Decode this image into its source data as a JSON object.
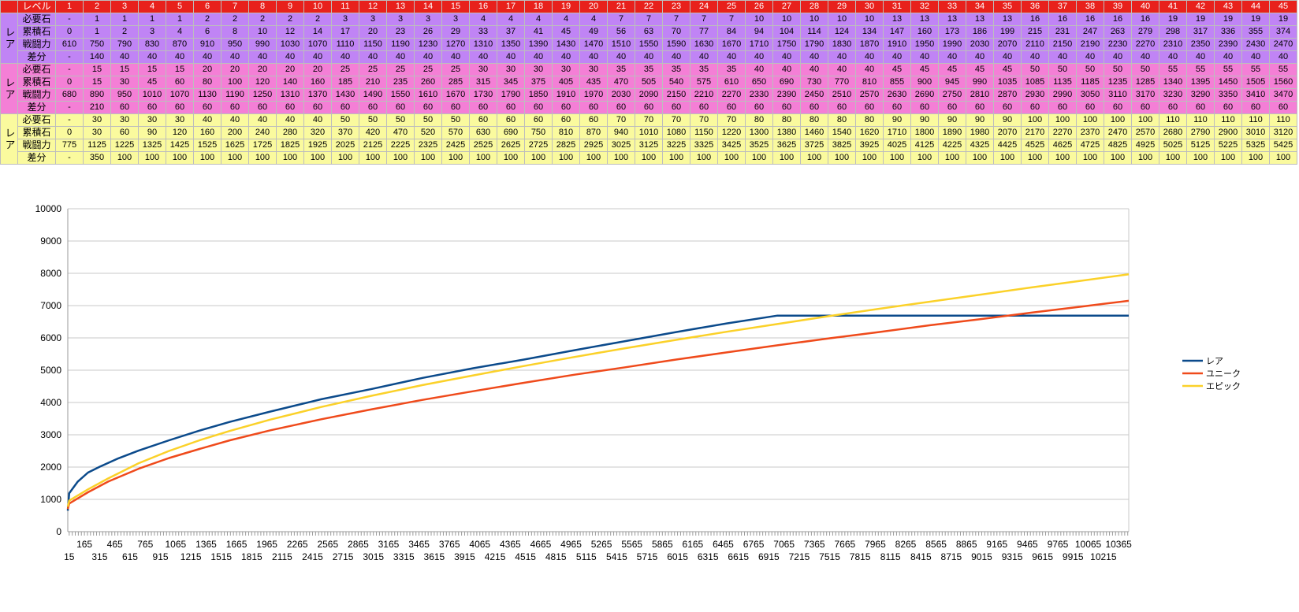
{
  "table": {
    "header_label": "レベル",
    "levels": [
      1,
      2,
      3,
      4,
      5,
      6,
      7,
      8,
      9,
      10,
      11,
      12,
      13,
      14,
      15,
      16,
      17,
      18,
      19,
      20,
      21,
      22,
      23,
      24,
      25,
      26,
      27,
      28,
      29,
      30,
      31,
      32,
      33,
      34,
      35,
      36,
      37,
      38,
      39,
      40,
      41,
      42,
      43,
      44,
      45
    ],
    "groups": [
      {
        "side_label": "レア",
        "color": "#c084f5",
        "rows": [
          {
            "label": "必要石",
            "values": [
              "-",
              "1",
              "1",
              "1",
              "1",
              "2",
              "2",
              "2",
              "2",
              "2",
              "3",
              "3",
              "3",
              "3",
              "3",
              "4",
              "4",
              "4",
              "4",
              "4",
              "7",
              "7",
              "7",
              "7",
              "7",
              "10",
              "10",
              "10",
              "10",
              "10",
              "13",
              "13",
              "13",
              "13",
              "13",
              "16",
              "16",
              "16",
              "16",
              "16",
              "19",
              "19",
              "19",
              "19",
              "19"
            ]
          },
          {
            "label": "累積石",
            "values": [
              "0",
              "1",
              "2",
              "3",
              "4",
              "6",
              "8",
              "10",
              "12",
              "14",
              "17",
              "20",
              "23",
              "26",
              "29",
              "33",
              "37",
              "41",
              "45",
              "49",
              "56",
              "63",
              "70",
              "77",
              "84",
              "94",
              "104",
              "114",
              "124",
              "134",
              "147",
              "160",
              "173",
              "186",
              "199",
              "215",
              "231",
              "247",
              "263",
              "279",
              "298",
              "317",
              "336",
              "355",
              "374"
            ]
          },
          {
            "label": "戦闘力",
            "values": [
              "610",
              "750",
              "790",
              "830",
              "870",
              "910",
              "950",
              "990",
              "1030",
              "1070",
              "1110",
              "1150",
              "1190",
              "1230",
              "1270",
              "1310",
              "1350",
              "1390",
              "1430",
              "1470",
              "1510",
              "1550",
              "1590",
              "1630",
              "1670",
              "1710",
              "1750",
              "1790",
              "1830",
              "1870",
              "1910",
              "1950",
              "1990",
              "2030",
              "2070",
              "2110",
              "2150",
              "2190",
              "2230",
              "2270",
              "2310",
              "2350",
              "2390",
              "2430",
              "2470"
            ]
          },
          {
            "label": "差分",
            "values": [
              "-",
              "140",
              "40",
              "40",
              "40",
              "40",
              "40",
              "40",
              "40",
              "40",
              "40",
              "40",
              "40",
              "40",
              "40",
              "40",
              "40",
              "40",
              "40",
              "40",
              "40",
              "40",
              "40",
              "40",
              "40",
              "40",
              "40",
              "40",
              "40",
              "40",
              "40",
              "40",
              "40",
              "40",
              "40",
              "40",
              "40",
              "40",
              "40",
              "40",
              "40",
              "40",
              "40",
              "40",
              "40"
            ]
          }
        ]
      },
      {
        "side_label": "レア",
        "color": "#f47fd6",
        "rows": [
          {
            "label": "必要石",
            "values": [
              "-",
              "15",
              "15",
              "15",
              "15",
              "20",
              "20",
              "20",
              "20",
              "20",
              "25",
              "25",
              "25",
              "25",
              "25",
              "30",
              "30",
              "30",
              "30",
              "30",
              "35",
              "35",
              "35",
              "35",
              "35",
              "40",
              "40",
              "40",
              "40",
              "40",
              "45",
              "45",
              "45",
              "45",
              "45",
              "50",
              "50",
              "50",
              "50",
              "50",
              "55",
              "55",
              "55",
              "55",
              "55"
            ]
          },
          {
            "label": "累積石",
            "values": [
              "0",
              "15",
              "30",
              "45",
              "60",
              "80",
              "100",
              "120",
              "140",
              "160",
              "185",
              "210",
              "235",
              "260",
              "285",
              "315",
              "345",
              "375",
              "405",
              "435",
              "470",
              "505",
              "540",
              "575",
              "610",
              "650",
              "690",
              "730",
              "770",
              "810",
              "855",
              "900",
              "945",
              "990",
              "1035",
              "1085",
              "1135",
              "1185",
              "1235",
              "1285",
              "1340",
              "1395",
              "1450",
              "1505",
              "1560"
            ]
          },
          {
            "label": "戦闘力",
            "values": [
              "680",
              "890",
              "950",
              "1010",
              "1070",
              "1130",
              "1190",
              "1250",
              "1310",
              "1370",
              "1430",
              "1490",
              "1550",
              "1610",
              "1670",
              "1730",
              "1790",
              "1850",
              "1910",
              "1970",
              "2030",
              "2090",
              "2150",
              "2210",
              "2270",
              "2330",
              "2390",
              "2450",
              "2510",
              "2570",
              "2630",
              "2690",
              "2750",
              "2810",
              "2870",
              "2930",
              "2990",
              "3050",
              "3110",
              "3170",
              "3230",
              "3290",
              "3350",
              "3410",
              "3470"
            ]
          },
          {
            "label": "差分",
            "values": [
              "-",
              "210",
              "60",
              "60",
              "60",
              "60",
              "60",
              "60",
              "60",
              "60",
              "60",
              "60",
              "60",
              "60",
              "60",
              "60",
              "60",
              "60",
              "60",
              "60",
              "60",
              "60",
              "60",
              "60",
              "60",
              "60",
              "60",
              "60",
              "60",
              "60",
              "60",
              "60",
              "60",
              "60",
              "60",
              "60",
              "60",
              "60",
              "60",
              "60",
              "60",
              "60",
              "60",
              "60",
              "60"
            ]
          }
        ]
      },
      {
        "side_label": "レア",
        "color": "#fafa9e",
        "rows": [
          {
            "label": "必要石",
            "values": [
              "-",
              "30",
              "30",
              "30",
              "30",
              "40",
              "40",
              "40",
              "40",
              "40",
              "50",
              "50",
              "50",
              "50",
              "50",
              "60",
              "60",
              "60",
              "60",
              "60",
              "70",
              "70",
              "70",
              "70",
              "70",
              "80",
              "80",
              "80",
              "80",
              "80",
              "90",
              "90",
              "90",
              "90",
              "90",
              "100",
              "100",
              "100",
              "100",
              "100",
              "110",
              "110",
              "110",
              "110",
              "110"
            ]
          },
          {
            "label": "累積石",
            "values": [
              "0",
              "30",
              "60",
              "90",
              "120",
              "160",
              "200",
              "240",
              "280",
              "320",
              "370",
              "420",
              "470",
              "520",
              "570",
              "630",
              "690",
              "750",
              "810",
              "870",
              "940",
              "1010",
              "1080",
              "1150",
              "1220",
              "1300",
              "1380",
              "1460",
              "1540",
              "1620",
              "1710",
              "1800",
              "1890",
              "1980",
              "2070",
              "2170",
              "2270",
              "2370",
              "2470",
              "2570",
              "2680",
              "2790",
              "2900",
              "3010",
              "3120"
            ]
          },
          {
            "label": "戦闘力",
            "values": [
              "775",
              "1125",
              "1225",
              "1325",
              "1425",
              "1525",
              "1625",
              "1725",
              "1825",
              "1925",
              "2025",
              "2125",
              "2225",
              "2325",
              "2425",
              "2525",
              "2625",
              "2725",
              "2825",
              "2925",
              "3025",
              "3125",
              "3225",
              "3325",
              "3425",
              "3525",
              "3625",
              "3725",
              "3825",
              "3925",
              "4025",
              "4125",
              "4225",
              "4325",
              "4425",
              "4525",
              "4625",
              "4725",
              "4825",
              "4925",
              "5025",
              "5125",
              "5225",
              "5325",
              "5425"
            ]
          },
          {
            "label": "差分",
            "values": [
              "-",
              "350",
              "100",
              "100",
              "100",
              "100",
              "100",
              "100",
              "100",
              "100",
              "100",
              "100",
              "100",
              "100",
              "100",
              "100",
              "100",
              "100",
              "100",
              "100",
              "100",
              "100",
              "100",
              "100",
              "100",
              "100",
              "100",
              "100",
              "100",
              "100",
              "100",
              "100",
              "100",
              "100",
              "100",
              "100",
              "100",
              "100",
              "100",
              "100",
              "100",
              "100",
              "100",
              "100",
              "100"
            ]
          }
        ]
      }
    ]
  },
  "chart_data": {
    "type": "line",
    "ylim": [
      0,
      10000
    ],
    "y_ticks": [
      0,
      1000,
      2000,
      3000,
      4000,
      5000,
      6000,
      7000,
      8000,
      9000,
      10000
    ],
    "xlim": [
      1,
      10465
    ],
    "x_labels_row1": [
      "165",
      "465",
      "765",
      "1065",
      "1365",
      "1665",
      "1965",
      "2265",
      "2565",
      "2865",
      "3165",
      "3465",
      "3765",
      "4065",
      "4365",
      "4665",
      "4965",
      "5265",
      "5565",
      "5865",
      "6165",
      "6465",
      "6765",
      "7065",
      "7365",
      "7665",
      "7965",
      "8265",
      "8565",
      "8865",
      "9165",
      "9465",
      "9765",
      "10065",
      "10365"
    ],
    "x_labels_row2": [
      "15",
      "315",
      "615",
      "915",
      "1215",
      "1515",
      "1815",
      "2115",
      "2415",
      "2715",
      "3015",
      "3315",
      "3615",
      "3915",
      "4215",
      "4515",
      "4815",
      "5115",
      "5415",
      "5715",
      "6015",
      "6315",
      "6615",
      "6915",
      "7215",
      "7515",
      "7815",
      "8115",
      "8415",
      "8715",
      "9015",
      "9315",
      "9615",
      "9915",
      "10215"
    ],
    "legend_position": "right",
    "grid": true,
    "series": [
      {
        "name": "レア",
        "color": "#0b4a8b",
        "values": [
          [
            1,
            650
          ],
          [
            15,
            1190
          ],
          [
            100,
            1550
          ],
          [
            200,
            1830
          ],
          [
            315,
            2010
          ],
          [
            500,
            2270
          ],
          [
            700,
            2510
          ],
          [
            1000,
            2830
          ],
          [
            1300,
            3130
          ],
          [
            1600,
            3400
          ],
          [
            2000,
            3720
          ],
          [
            2500,
            4100
          ],
          [
            3000,
            4420
          ],
          [
            3500,
            4760
          ],
          [
            4000,
            5060
          ],
          [
            4500,
            5330
          ],
          [
            5000,
            5620
          ],
          [
            5500,
            5900
          ],
          [
            6000,
            6180
          ],
          [
            6500,
            6450
          ],
          [
            7000,
            6690
          ],
          [
            10465,
            6690
          ]
        ]
      },
      {
        "name": "ユニーク",
        "color": "#ef4a1b",
        "values": [
          [
            1,
            700
          ],
          [
            15,
            870
          ],
          [
            200,
            1220
          ],
          [
            400,
            1550
          ],
          [
            700,
            1950
          ],
          [
            1000,
            2280
          ],
          [
            1300,
            2560
          ],
          [
            1600,
            2830
          ],
          [
            2000,
            3140
          ],
          [
            2500,
            3480
          ],
          [
            3000,
            3790
          ],
          [
            3500,
            4080
          ],
          [
            4000,
            4350
          ],
          [
            4500,
            4610
          ],
          [
            5000,
            4860
          ],
          [
            5500,
            5090
          ],
          [
            6000,
            5330
          ],
          [
            6500,
            5550
          ],
          [
            7000,
            5770
          ],
          [
            7500,
            5980
          ],
          [
            8000,
            6180
          ],
          [
            8500,
            6390
          ],
          [
            9000,
            6580
          ],
          [
            9500,
            6780
          ],
          [
            10000,
            6970
          ],
          [
            10465,
            7150
          ]
        ]
      },
      {
        "name": "エピック",
        "color": "#fbd129",
        "values": [
          [
            1,
            770
          ],
          [
            15,
            960
          ],
          [
            200,
            1310
          ],
          [
            400,
            1650
          ],
          [
            700,
            2120
          ],
          [
            1000,
            2500
          ],
          [
            1300,
            2830
          ],
          [
            1600,
            3120
          ],
          [
            2000,
            3470
          ],
          [
            2500,
            3860
          ],
          [
            3000,
            4210
          ],
          [
            3500,
            4540
          ],
          [
            4000,
            4840
          ],
          [
            4500,
            5130
          ],
          [
            5000,
            5410
          ],
          [
            5500,
            5680
          ],
          [
            6000,
            5940
          ],
          [
            6500,
            6190
          ],
          [
            7000,
            6430
          ],
          [
            7500,
            6670
          ],
          [
            8000,
            6900
          ],
          [
            8500,
            7120
          ],
          [
            9000,
            7340
          ],
          [
            9500,
            7560
          ],
          [
            10000,
            7770
          ],
          [
            10465,
            7970
          ]
        ]
      }
    ]
  }
}
